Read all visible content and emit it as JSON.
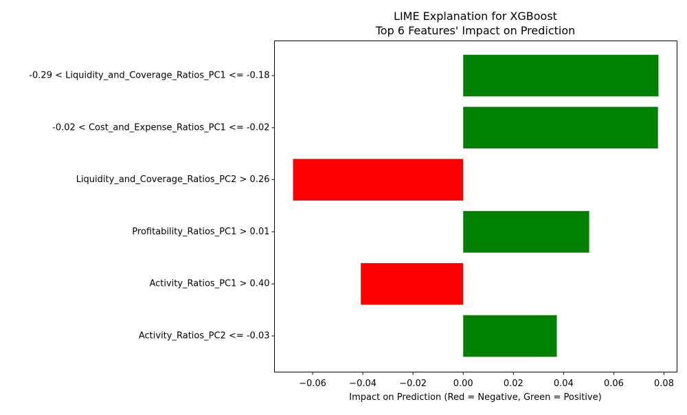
{
  "chart_data": {
    "type": "bar",
    "orientation": "horizontal",
    "title": "LIME Explanation for XGBoost",
    "subtitle": "Top 6 Features' Impact on Prediction",
    "xlabel": "Impact on Prediction (Red = Negative, Green = Positive)",
    "ylabel": "",
    "categories": [
      "-0.29 < Liquidity_and_Coverage_Ratios_PC1 <= -0.18",
      "-0.02 < Cost_and_Expense_Ratios_PC1 <= -0.02",
      "Liquidity_and_Coverage_Ratios_PC2 > 0.26",
      "Profitability_Ratios_PC1 > 0.01",
      "Activity_Ratios_PC1 > 0.40",
      "Activity_Ratios_PC2 <= -0.03"
    ],
    "values": [
      0.0778,
      0.0776,
      -0.0678,
      0.0502,
      -0.0408,
      0.0373
    ],
    "xlim": [
      -0.0752,
      0.0852
    ],
    "xticks": [
      -0.06,
      -0.04,
      -0.02,
      0.0,
      0.02,
      0.04,
      0.06,
      0.08
    ],
    "xtick_labels": [
      "−0.06",
      "−0.04",
      "−0.02",
      "0.00",
      "0.02",
      "0.04",
      "0.06",
      "0.08"
    ],
    "grid": false,
    "legend": "none",
    "colors": {
      "positive": "#008000",
      "negative": "#ff0000"
    }
  }
}
